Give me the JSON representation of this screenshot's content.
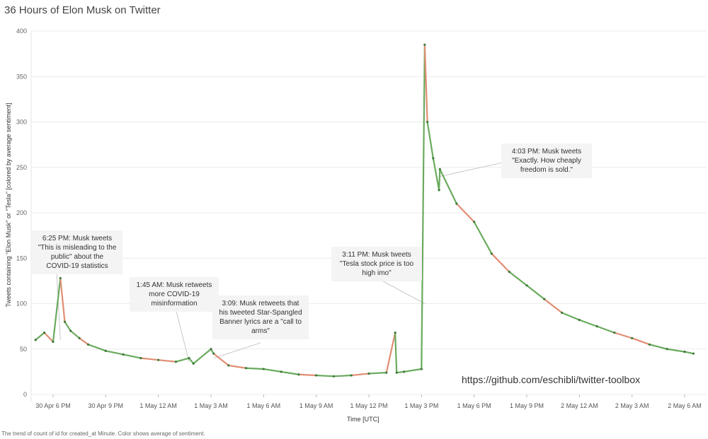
{
  "chart_data": {
    "type": "line",
    "title": "36 Hours of Elon Musk on Twitter",
    "xlabel": "Time [UTC]",
    "ylabel": "Tweets containing \"Elon Musk\" or \"Tesla\" [colored by average sentiment]",
    "ylim": [
      0,
      400
    ],
    "y_ticks": [
      "0",
      "50",
      "100",
      "150",
      "200",
      "250",
      "300",
      "350",
      "400"
    ],
    "x_ticks": [
      "30 Apr 6 PM",
      "30 Apr 9 PM",
      "1 May 12 AM",
      "1 May 3 AM",
      "1 May 6 AM",
      "1 May 9 AM",
      "1 May 12 PM",
      "1 May 3 PM",
      "1 May 6 PM",
      "1 May 9 PM",
      "2 May 12 AM",
      "2 May 3 AM",
      "2 May 6 AM"
    ],
    "grid": true,
    "colors": {
      "positive": "#6aaa5e",
      "negative": "#e08e73",
      "dark": "#3f7a3a"
    },
    "series": [
      {
        "values": [
          {
            "x": "2020-04-30 17:00",
            "y": 60
          },
          {
            "x": "2020-04-30 17:30",
            "y": 68
          },
          {
            "x": "2020-04-30 18:00",
            "y": 58
          },
          {
            "x": "2020-04-30 18:25",
            "y": 128
          },
          {
            "x": "2020-04-30 18:40",
            "y": 80
          },
          {
            "x": "2020-04-30 19:00",
            "y": 70
          },
          {
            "x": "2020-04-30 19:30",
            "y": 62
          },
          {
            "x": "2020-04-30 20:00",
            "y": 55
          },
          {
            "x": "2020-04-30 21:00",
            "y": 48
          },
          {
            "x": "2020-04-30 22:00",
            "y": 44
          },
          {
            "x": "2020-04-30 23:00",
            "y": 40
          },
          {
            "x": "2020-05-01 00:00",
            "y": 38
          },
          {
            "x": "2020-05-01 01:00",
            "y": 36
          },
          {
            "x": "2020-05-01 01:45",
            "y": 40
          },
          {
            "x": "2020-05-01 02:00",
            "y": 34
          },
          {
            "x": "2020-05-01 03:00",
            "y": 50
          },
          {
            "x": "2020-05-01 03:09",
            "y": 45
          },
          {
            "x": "2020-05-01 04:00",
            "y": 32
          },
          {
            "x": "2020-05-01 05:00",
            "y": 29
          },
          {
            "x": "2020-05-01 06:00",
            "y": 28
          },
          {
            "x": "2020-05-01 07:00",
            "y": 25
          },
          {
            "x": "2020-05-01 08:00",
            "y": 22
          },
          {
            "x": "2020-05-01 09:00",
            "y": 21
          },
          {
            "x": "2020-05-01 10:00",
            "y": 20
          },
          {
            "x": "2020-05-01 11:00",
            "y": 21
          },
          {
            "x": "2020-05-01 12:00",
            "y": 23
          },
          {
            "x": "2020-05-01 13:00",
            "y": 24
          },
          {
            "x": "2020-05-01 13:30",
            "y": 68
          },
          {
            "x": "2020-05-01 13:35",
            "y": 24
          },
          {
            "x": "2020-05-01 14:00",
            "y": 25
          },
          {
            "x": "2020-05-01 15:00",
            "y": 28
          },
          {
            "x": "2020-05-01 15:11",
            "y": 385
          },
          {
            "x": "2020-05-01 15:20",
            "y": 300
          },
          {
            "x": "2020-05-01 15:40",
            "y": 260
          },
          {
            "x": "2020-05-01 16:00",
            "y": 225
          },
          {
            "x": "2020-05-01 16:03",
            "y": 248
          },
          {
            "x": "2020-05-01 17:00",
            "y": 210
          },
          {
            "x": "2020-05-01 18:00",
            "y": 190
          },
          {
            "x": "2020-05-01 19:00",
            "y": 155
          },
          {
            "x": "2020-05-01 20:00",
            "y": 135
          },
          {
            "x": "2020-05-01 21:00",
            "y": 120
          },
          {
            "x": "2020-05-01 22:00",
            "y": 105
          },
          {
            "x": "2020-05-01 23:00",
            "y": 90
          },
          {
            "x": "2020-05-02 00:00",
            "y": 82
          },
          {
            "x": "2020-05-02 01:00",
            "y": 75
          },
          {
            "x": "2020-05-02 02:00",
            "y": 68
          },
          {
            "x": "2020-05-02 03:00",
            "y": 62
          },
          {
            "x": "2020-05-02 04:00",
            "y": 55
          },
          {
            "x": "2020-05-02 05:00",
            "y": 50
          },
          {
            "x": "2020-05-02 06:00",
            "y": 47
          },
          {
            "x": "2020-05-02 06:30",
            "y": 45
          }
        ]
      }
    ],
    "annotations": [
      {
        "lines": [
          "6:25 PM: Musk tweets",
          "\"This is misleading to the",
          "public\" about the",
          "COVID-19 statistics"
        ]
      },
      {
        "lines": [
          "1:45 AM: Musk retweets",
          "more COVID-19",
          "misinformation"
        ]
      },
      {
        "lines": [
          "3:09: Musk retweets that",
          "his tweeted Star-Spangled",
          "Banner lyrics are a \"call to",
          "arms\""
        ]
      },
      {
        "lines": [
          "3:11 PM: Musk tweets",
          "\"Tesla stock price is too",
          "high imo\""
        ]
      },
      {
        "lines": [
          "4:03 PM: Musk tweets",
          "\"Exactly. How cheaply",
          "freedom is sold.\""
        ]
      }
    ],
    "url": "https://github.com/eschibli/twitter-toolbox",
    "footnote": "The trend of count of id for created_at Minute.  Color shows average of sentiment."
  }
}
